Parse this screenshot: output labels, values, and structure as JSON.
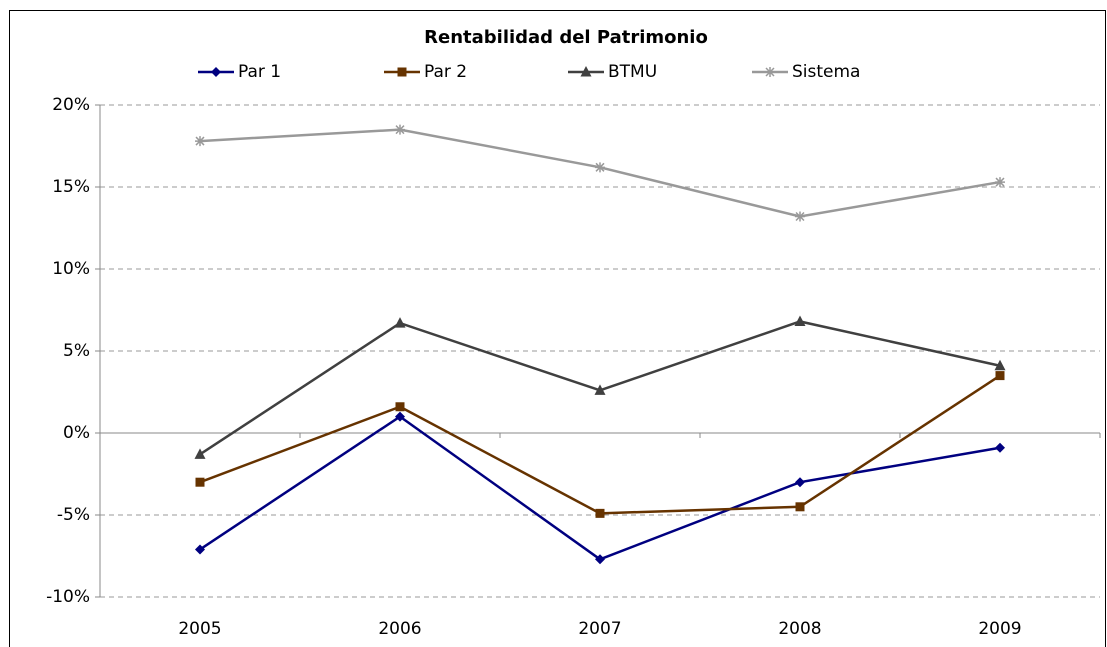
{
  "chart_data": {
    "type": "line",
    "title": "Rentabilidad del Patrimonio",
    "categories": [
      "2005",
      "2006",
      "2007",
      "2008",
      "2009"
    ],
    "series": [
      {
        "name": "Par 1",
        "color": "#000080",
        "marker": "diamond",
        "values": [
          -7.1,
          1.0,
          -7.7,
          -3.0,
          -0.9
        ]
      },
      {
        "name": "Par 2",
        "color": "#663300",
        "marker": "square",
        "values": [
          -3.0,
          1.6,
          -4.9,
          -4.5,
          3.5
        ]
      },
      {
        "name": "BTMU",
        "color": "#404040",
        "marker": "triangle",
        "values": [
          -1.3,
          6.7,
          2.6,
          6.8,
          4.1
        ]
      },
      {
        "name": "Sistema",
        "color": "#999999",
        "marker": "star",
        "values": [
          17.8,
          18.5,
          16.2,
          13.2,
          15.3
        ]
      }
    ],
    "ylim": [
      -10,
      20
    ],
    "yticks": [
      {
        "value": -10,
        "label": "-10%"
      },
      {
        "value": -5,
        "label": "-5%"
      },
      {
        "value": 0,
        "label": "0%"
      },
      {
        "value": 5,
        "label": "5%"
      },
      {
        "value": 10,
        "label": "10%"
      },
      {
        "value": 15,
        "label": "15%"
      },
      {
        "value": 20,
        "label": "20%"
      }
    ],
    "grid": true,
    "legend": "top"
  }
}
